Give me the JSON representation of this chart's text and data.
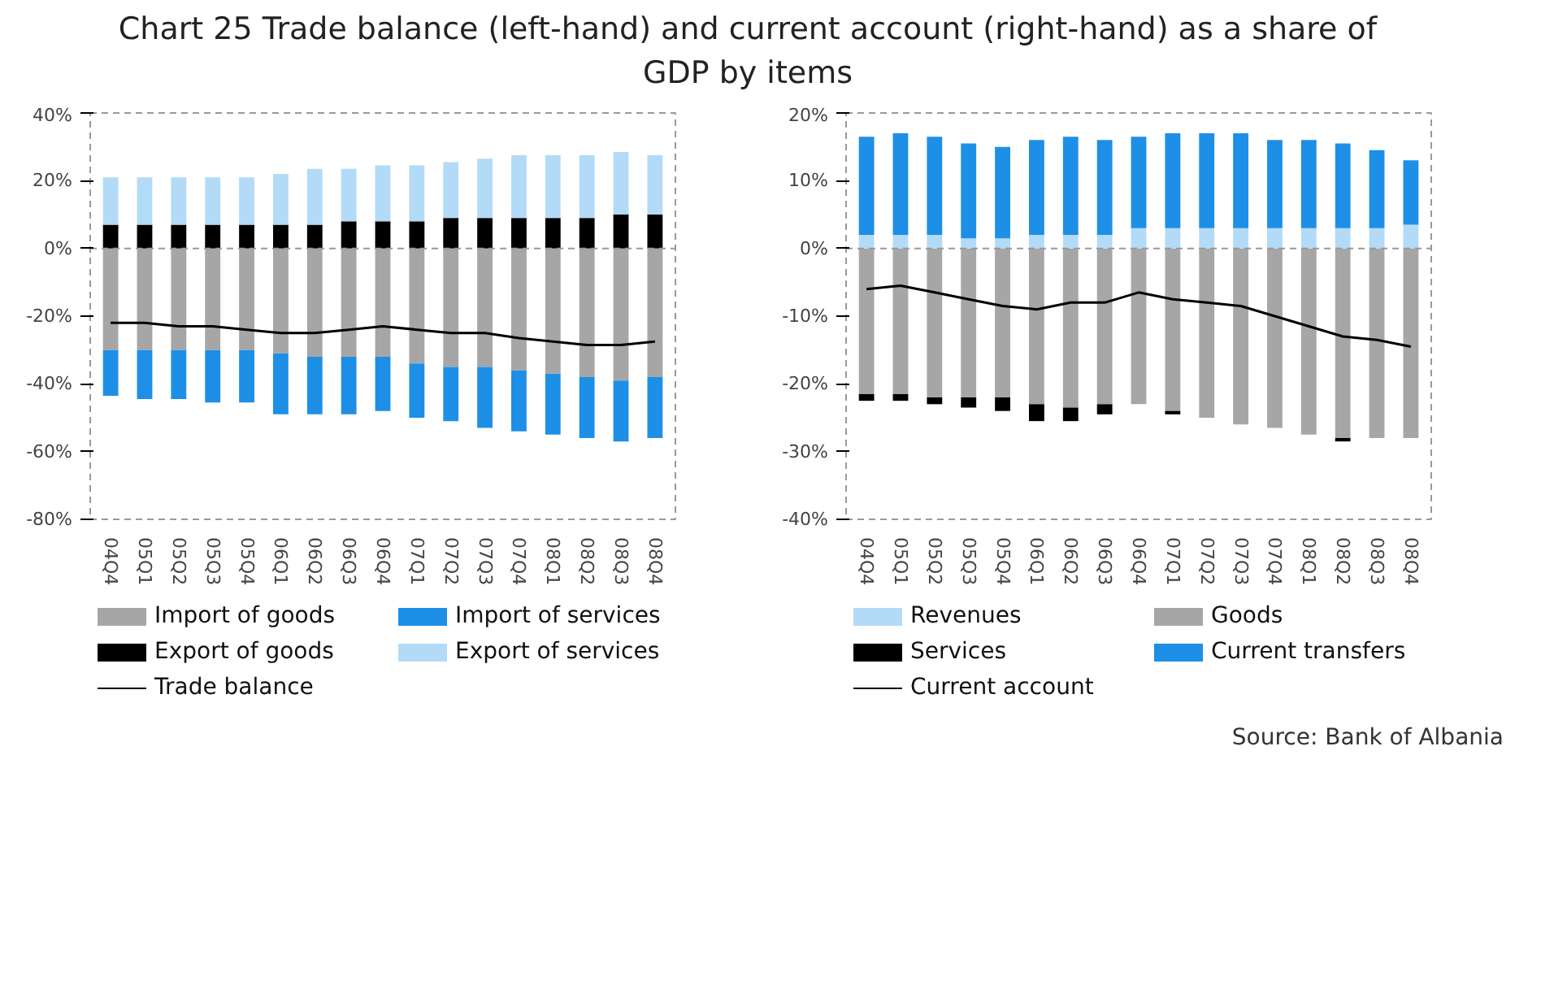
{
  "chart_data": [
    {
      "type": "bar",
      "stacked": true,
      "title": "Chart 25 Trade balance (left-hand) and current account (right-hand) as a share of GDP by items",
      "categories": [
        "04Q4",
        "05Q1",
        "05Q2",
        "05Q3",
        "05Q4",
        "06Q1",
        "06Q2",
        "06Q3",
        "06Q4",
        "07Q1",
        "07Q2",
        "07Q3",
        "07Q4",
        "08Q1",
        "08Q2",
        "08Q3",
        "08Q4"
      ],
      "series": [
        {
          "name": "Import of goods",
          "color": "#a6a6a6",
          "values": [
            -30,
            -30,
            -30,
            -30,
            -30,
            -31,
            -32,
            -32,
            -32,
            -34,
            -35,
            -35,
            -36,
            -37,
            -38,
            -39,
            -38
          ]
        },
        {
          "name": "Import of services",
          "color": "#1e8fe6",
          "values": [
            -13.5,
            -14.5,
            -14.5,
            -15.5,
            -15.5,
            -18,
            -17,
            -17,
            -16,
            -16,
            -16,
            -18,
            -18,
            -18,
            -18,
            -18,
            -18
          ]
        },
        {
          "name": "Export of goods",
          "color": "#000000",
          "values": [
            7,
            7,
            7,
            7,
            7,
            7,
            7,
            8,
            8,
            8,
            9,
            9,
            9,
            9,
            9,
            10,
            10
          ]
        },
        {
          "name": "Export of services",
          "color": "#b3dbf7",
          "values": [
            14,
            14,
            14,
            14,
            14,
            15,
            16.5,
            15.5,
            16.5,
            16.5,
            16.5,
            17.5,
            18.5,
            18.5,
            18.5,
            18.5,
            17.5
          ]
        },
        {
          "name": "Trade balance",
          "type": "line",
          "color": "#000000",
          "values": [
            -22,
            -22,
            -23,
            -23,
            -24,
            -25,
            -25,
            -24,
            -23,
            -24,
            -25,
            -25,
            -26.5,
            -27.5,
            -28.5,
            -28.5,
            -27.5
          ]
        }
      ],
      "ylim": [
        -80,
        40
      ],
      "yticks": [
        {
          "value": -80,
          "label": "-80%"
        },
        {
          "value": -60,
          "label": "-60%"
        },
        {
          "value": -40,
          "label": "-40%"
        },
        {
          "value": -20,
          "label": "-20%"
        },
        {
          "value": 0,
          "label": "0%"
        },
        {
          "value": 20,
          "label": "20%"
        },
        {
          "value": 40,
          "label": "40%"
        }
      ],
      "legend": "bottom",
      "grid": false,
      "ref_lines": [
        {
          "axis": "y",
          "value": 0,
          "color": "#999999",
          "line_style": "dashed"
        }
      ]
    },
    {
      "type": "bar",
      "stacked": true,
      "categories": [
        "04Q4",
        "05Q1",
        "05Q2",
        "05Q3",
        "05Q4",
        "06Q1",
        "06Q2",
        "06Q3",
        "06Q4",
        "07Q1",
        "07Q2",
        "07Q3",
        "07Q4",
        "08Q1",
        "08Q2",
        "08Q3",
        "08Q4"
      ],
      "series": [
        {
          "name": "Revenues",
          "color": "#b3dbf7",
          "values": [
            2,
            2,
            2,
            1.5,
            1.5,
            2,
            2,
            2,
            3,
            3,
            3,
            3,
            3,
            3,
            3,
            3,
            3.5
          ]
        },
        {
          "name": "Goods",
          "color": "#a6a6a6",
          "values": [
            -21.5,
            -21.5,
            -22,
            -22,
            -22,
            -23,
            -23.5,
            -23,
            -23,
            -24,
            -25,
            -26,
            -26.5,
            -27.5,
            -28,
            -28,
            -28
          ]
        },
        {
          "name": "Services",
          "color": "#000000",
          "values": [
            -1,
            -1,
            -1,
            -1.5,
            -2,
            -2.5,
            -2,
            -1.5,
            0,
            -0.5,
            0,
            0,
            0,
            0,
            -0.5,
            0,
            0
          ]
        },
        {
          "name": "Current transfers",
          "color": "#1e8fe6",
          "values": [
            14.5,
            15,
            14.5,
            14,
            13.5,
            14,
            14.5,
            14,
            13.5,
            14,
            14,
            14,
            13,
            13,
            12.5,
            11.5,
            9.5
          ]
        },
        {
          "name": "Current account",
          "type": "line",
          "color": "#000000",
          "values": [
            -6,
            -5.5,
            -6.5,
            -7.5,
            -8.5,
            -9,
            -8,
            -8,
            -6.5,
            -7.5,
            -8,
            -8.5,
            -10,
            -11.5,
            -13,
            -13.5,
            -14.5
          ]
        }
      ],
      "ylim": [
        -40,
        20
      ],
      "yticks": [
        {
          "value": -40,
          "label": "-40%"
        },
        {
          "value": -30,
          "label": "-30%"
        },
        {
          "value": -20,
          "label": "-20%"
        },
        {
          "value": -10,
          "label": "-10%"
        },
        {
          "value": 0,
          "label": "0%"
        },
        {
          "value": 10,
          "label": "10%"
        },
        {
          "value": 20,
          "label": "20%"
        }
      ],
      "legend": "bottom",
      "grid": false,
      "ref_lines": [
        {
          "axis": "y",
          "value": 0,
          "color": "#999999",
          "line_style": "dashed"
        }
      ],
      "annotations": [
        "Source: Bank of Albania"
      ]
    }
  ]
}
